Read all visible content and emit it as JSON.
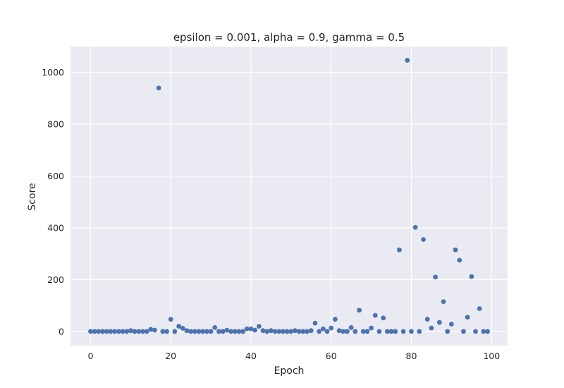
{
  "chart_data": {
    "type": "scatter",
    "title": "epsilon = 0.001, alpha = 0.9, gamma = 0.5",
    "xlabel": "Epoch",
    "ylabel": "Score",
    "xlim": [
      -5,
      104
    ],
    "ylim": [
      -55,
      1100
    ],
    "xticks": [
      0,
      20,
      40,
      60,
      80,
      100
    ],
    "yticks": [
      0,
      200,
      400,
      600,
      800,
      1000
    ],
    "grid": true,
    "marker_color": "#4c72b0",
    "background_color": "#eaeaf2",
    "grid_color": "#ffffff",
    "series": [
      {
        "x": [
          0,
          1,
          2,
          3,
          4,
          5,
          6,
          7,
          8,
          9,
          10,
          11,
          12,
          13,
          14,
          15,
          16,
          17,
          18,
          19,
          20,
          21,
          22,
          23,
          24,
          25,
          26,
          27,
          28,
          29,
          30,
          31,
          32,
          33,
          34,
          35,
          36,
          37,
          38,
          39,
          40,
          41,
          42,
          43,
          44,
          45,
          46,
          47,
          48,
          49,
          50,
          51,
          52,
          53,
          54,
          55,
          56,
          57,
          58,
          59,
          60,
          61,
          62,
          63,
          64,
          65,
          66,
          67,
          68,
          69,
          70,
          71,
          72,
          73,
          74,
          75,
          76,
          77,
          78,
          79,
          80,
          81,
          82,
          83,
          84,
          85,
          86,
          87,
          88,
          89,
          90,
          91,
          92,
          93,
          94,
          95,
          96,
          97,
          98,
          99
        ],
        "y": [
          0,
          0,
          0,
          0,
          0,
          0,
          0,
          0,
          0,
          0,
          3,
          0,
          0,
          0,
          0,
          8,
          5,
          940,
          0,
          0,
          47,
          0,
          20,
          12,
          3,
          0,
          0,
          0,
          0,
          0,
          0,
          15,
          0,
          0,
          5,
          0,
          0,
          0,
          0,
          10,
          10,
          5,
          20,
          3,
          0,
          3,
          0,
          0,
          0,
          0,
          0,
          3,
          0,
          0,
          0,
          3,
          32,
          0,
          10,
          0,
          13,
          47,
          3,
          0,
          0,
          15,
          0,
          82,
          0,
          0,
          13,
          62,
          0,
          52,
          0,
          0,
          0,
          315,
          0,
          1047,
          0,
          402,
          0,
          355,
          47,
          13,
          210,
          35,
          115,
          0,
          28,
          315,
          275,
          0,
          55,
          212,
          0,
          88,
          0,
          0
        ]
      }
    ]
  }
}
